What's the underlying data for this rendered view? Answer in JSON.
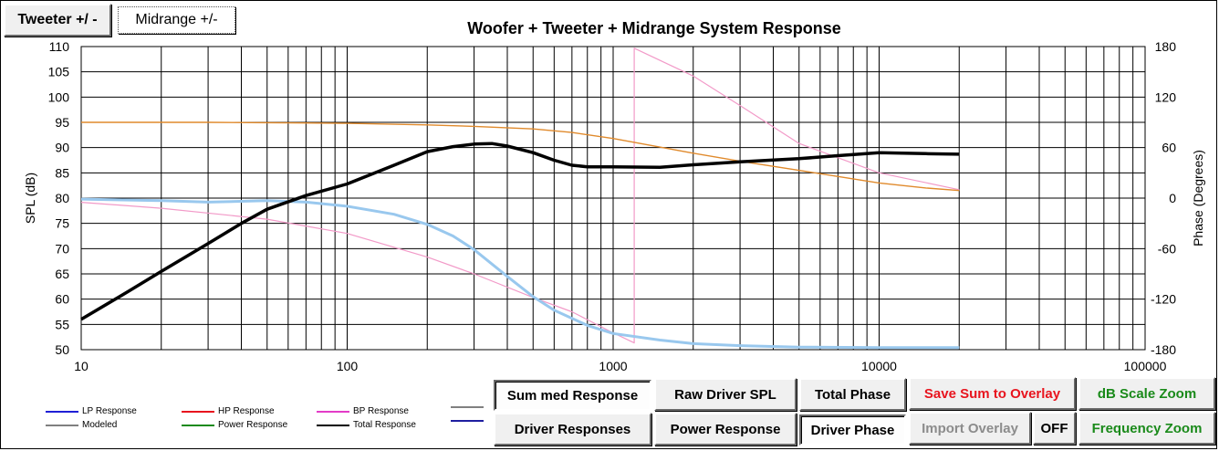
{
  "toolbar": {
    "tweeter_label": "Tweeter +/ -",
    "midrange_label": "Midrange  +/-"
  },
  "chart_data": {
    "type": "line",
    "title": "Woofer + Tweeter + Midrange  System Response",
    "xlabel": "",
    "ylabel": "SPL (dB)",
    "y2label": "Phase (Degrees)",
    "x_scale": "log",
    "xlim": [
      10,
      100000
    ],
    "ylim": [
      50,
      110
    ],
    "y2lim": [
      -180,
      180
    ],
    "x_tick_labels": [
      "10",
      "100",
      "1000",
      "10000",
      "100000"
    ],
    "y_tick_labels": [
      "110",
      "105",
      "100",
      "95",
      "90",
      "85",
      "80",
      "75",
      "70",
      "65",
      "60",
      "55",
      "50"
    ],
    "y2_tick_labels": [
      "180",
      "120",
      "60",
      "0",
      "-60",
      "-120",
      "-180"
    ],
    "grid": true,
    "colors": {
      "total": "#000000",
      "orange": "#e08a2c",
      "pink": "#f29ac8",
      "lightblue": "#99c8ee"
    },
    "series": [
      {
        "name": "Total Response",
        "axis": "left",
        "color": "#000000",
        "x": [
          10,
          15,
          20,
          30,
          40,
          50,
          70,
          100,
          150,
          200,
          250,
          300,
          350,
          400,
          500,
          600,
          700,
          800,
          1000,
          1500,
          2000,
          3000,
          5000,
          7000,
          10000,
          15000,
          20000
        ],
        "y": [
          56,
          61.5,
          65.5,
          71,
          75,
          77.8,
          80.5,
          82.8,
          86.5,
          89.2,
          90.2,
          90.7,
          90.8,
          90.3,
          89,
          87.5,
          86.5,
          86.2,
          86.2,
          86.1,
          86.6,
          87.2,
          87.8,
          88.4,
          89,
          88.8,
          88.7
        ]
      },
      {
        "axis": "left",
        "color": "#e08a2c",
        "x": [
          10,
          30,
          60,
          100,
          200,
          300,
          500,
          700,
          1000,
          2000,
          3000,
          5000,
          10000,
          15000,
          20000
        ],
        "y": [
          95,
          95,
          94.9,
          94.8,
          94.5,
          94.2,
          93.7,
          93,
          91.8,
          88.9,
          87.3,
          85.5,
          83,
          82,
          81.5
        ]
      },
      {
        "axis": "left",
        "color": "#99c8ee",
        "x": [
          10,
          20,
          30,
          50,
          70,
          100,
          150,
          200,
          250,
          300,
          400,
          500,
          600,
          800,
          1000,
          1500,
          2000,
          3000,
          5000,
          10000,
          20000
        ],
        "y": [
          79.8,
          79.5,
          79.2,
          79.5,
          79.2,
          78.4,
          76.8,
          74.8,
          72.5,
          69.8,
          64.5,
          60.5,
          57.8,
          54.8,
          53.2,
          51.9,
          51.2,
          50.8,
          50.5,
          50.4,
          50.4
        ]
      },
      {
        "axis": "right",
        "color": "#f29ac8",
        "x": [
          10,
          20,
          50,
          100,
          200,
          300,
          500,
          700,
          1000,
          1200,
          1200.1,
          2000,
          3000,
          5000,
          10000,
          20000
        ],
        "y": [
          -5,
          -12,
          -25,
          -42,
          -70,
          -90,
          -118,
          -135,
          -160,
          -172,
          178,
          145,
          110,
          65,
          30,
          10
        ]
      }
    ]
  },
  "legend": {
    "items": [
      {
        "label": "LP Response",
        "color": "#1f1fd6"
      },
      {
        "label": "HP Response",
        "color": "#e8141e"
      },
      {
        "label": "BP Response",
        "color": "#e33cc8"
      },
      {
        "label": "",
        "color": "#808080"
      },
      {
        "label": "Modeled",
        "color": "#808080"
      },
      {
        "label": "Power Response",
        "color": "#1a8a1a"
      },
      {
        "label": "Total Response",
        "color": "#000000"
      },
      {
        "label": "",
        "color": "#1f1fa0"
      }
    ]
  },
  "controls": {
    "summed_response": "Sum med Response",
    "raw_driver_spl": "Raw Driver SPL",
    "total_phase": "Total Phase",
    "save_sum": "Save Sum to Overlay",
    "db_zoom": "dB Scale Zoom",
    "driver_responses": "Driver Responses",
    "power_response": "Power Response",
    "driver_phase": "Driver Phase",
    "import_overlay": "Import Overlay",
    "off": "OFF",
    "freq_zoom": "Frequency Zoom"
  }
}
